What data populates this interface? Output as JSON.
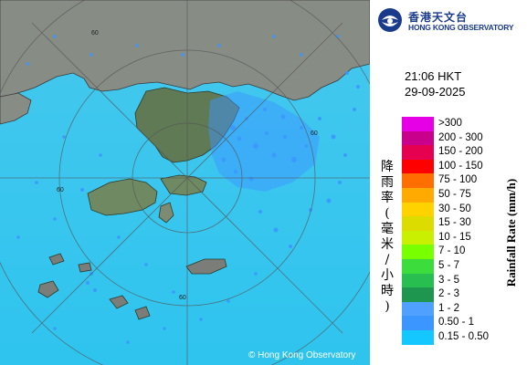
{
  "header": {
    "org_name_zh": "香港天文台",
    "org_name_en": "HONG KONG OBSERVATORY"
  },
  "timestamp": {
    "time": "21:06 HKT",
    "date": "29-09-2025"
  },
  "legend": {
    "axis_label_zh": "降雨率(毫米/小時)",
    "axis_label_en": "Rainfall Rate (mm/h)",
    "items": [
      {
        "label": ">300",
        "color": "#e600e6"
      },
      {
        "label": "200 - 300",
        "color": "#c8008c"
      },
      {
        "label": "150 - 200",
        "color": "#e60050"
      },
      {
        "label": "100 - 150",
        "color": "#ff0000"
      },
      {
        "label": "75 - 100",
        "color": "#ff6e00"
      },
      {
        "label": "50 - 75",
        "color": "#ffaa00"
      },
      {
        "label": "30 - 50",
        "color": "#ffd200"
      },
      {
        "label": "15 - 30",
        "color": "#dcdc00"
      },
      {
        "label": "10 - 15",
        "color": "#c8f000"
      },
      {
        "label": "7 - 10",
        "color": "#78ff00"
      },
      {
        "label": "5 - 7",
        "color": "#3cdc3c"
      },
      {
        "label": "3 - 5",
        "color": "#28be50"
      },
      {
        "label": "2 - 3",
        "color": "#1e9650"
      },
      {
        "label": "1 - 2",
        "color": "#50a0ff"
      },
      {
        "label": "0.50 - 1",
        "color": "#3c96ff"
      },
      {
        "label": "0.15 - 0.50",
        "color": "#14c8ff"
      }
    ]
  },
  "map": {
    "range_ring_labels": [
      "60",
      "60",
      "60",
      "60"
    ],
    "copyright": "© Hong Kong Observatory",
    "sea_color": "#3cc8f0",
    "land_color": "#8a8f86",
    "rain_color": "#3c96ff"
  }
}
